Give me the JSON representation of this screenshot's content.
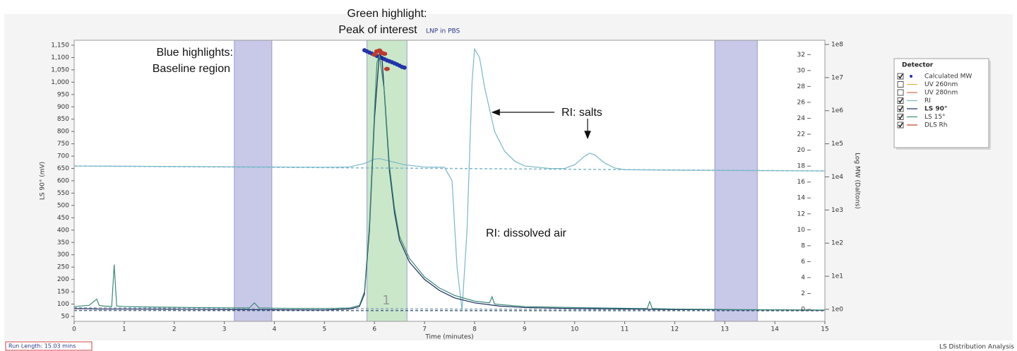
{
  "chart_data": {
    "type": "line",
    "subtitle": "LNP in PBS",
    "x_label": "Time (minutes)",
    "y_label": "LS 90° (mV)",
    "y3_label": "Log MW (Daltons)",
    "xlim": [
      0,
      15
    ],
    "xticks": [
      0,
      1,
      2,
      3,
      4,
      5,
      6,
      7,
      8,
      9,
      10,
      11,
      12,
      13,
      14,
      15
    ],
    "ylim": [
      30,
      1170
    ],
    "yticks": [
      50,
      100,
      150,
      200,
      250,
      300,
      350,
      400,
      450,
      500,
      550,
      600,
      650,
      700,
      750,
      800,
      850,
      900,
      950,
      {
        "value": 1000,
        "label": "1,000"
      },
      {
        "value": 1050,
        "label": "1,050"
      },
      {
        "value": 1100,
        "label": "1,100"
      },
      {
        "value": 1150,
        "label": "1,150"
      }
    ],
    "y2lim": [
      -1.5,
      33.8
    ],
    "y2ticks": [
      0,
      2,
      4,
      6,
      8,
      10,
      12,
      14,
      16,
      18,
      20,
      22,
      24,
      26,
      28,
      30,
      32
    ],
    "y3lim": [
      0.434,
      134000000
    ],
    "y3log": true,
    "y3ticks": [
      {
        "value": 1,
        "label": "1e0"
      },
      {
        "value": 10,
        "label": "1e1"
      },
      {
        "value": 100,
        "label": "1e2"
      },
      {
        "value": 1000,
        "label": "1e3"
      },
      {
        "value": 10000,
        "label": "1e4"
      },
      {
        "value": 100000,
        "label": "1e5"
      },
      {
        "value": 1000000,
        "label": "1e6"
      },
      {
        "value": 10000000,
        "label": "1e7"
      },
      {
        "value": 100000000,
        "label": "1e8"
      }
    ],
    "grid": false,
    "legend_title": "Detector",
    "highlights": [
      {
        "x": [
          3.2,
          3.95
        ],
        "color": "#9b9bd6"
      },
      {
        "x": [
          5.85,
          6.65
        ],
        "color": "#9fd39f"
      },
      {
        "x": [
          12.8,
          13.65
        ],
        "color": "#9b9bd6"
      }
    ],
    "baselines": [
      {
        "x": [
          0,
          15
        ],
        "values": [
          660,
          640
        ],
        "color": "#7fb8cc"
      },
      {
        "x": [
          0,
          15
        ],
        "values": [
          85,
          75
        ],
        "color": "#8fa4b8"
      },
      {
        "x": [
          0,
          15
        ],
        "values": [
          74,
          73
        ],
        "color": "#4f6a88"
      }
    ],
    "series": [
      {
        "name": "Calculated MW",
        "color": "#2233aa",
        "checked": true,
        "style": "markers",
        "axis": "y3",
        "x": [
          5.8,
          5.85,
          5.9,
          5.95,
          6.0,
          6.05,
          6.1,
          6.15,
          6.2,
          6.25,
          6.3,
          6.35,
          6.4,
          6.45,
          6.5,
          6.55,
          6.6
        ],
        "values": [
          67000000,
          62000000,
          57000000,
          53000000,
          49000000,
          45000000,
          42000000,
          39000000,
          36000000,
          33000000,
          31000000,
          29000000,
          27000000,
          25000000,
          23000000,
          21000000,
          20000000
        ]
      },
      {
        "name": "UV 260nm",
        "color": "#e8b04a",
        "checked": false,
        "style": "line",
        "x": [],
        "values": []
      },
      {
        "name": "UV 280nm",
        "color": "#e0704a",
        "checked": false,
        "style": "line",
        "x": [],
        "values": []
      },
      {
        "name": "RI",
        "color": "#78b7c9",
        "checked": true,
        "style": "line",
        "x": [
          0,
          1,
          2,
          3,
          4,
          5,
          5.5,
          5.8,
          6.0,
          6.1,
          6.3,
          6.6,
          7.0,
          7.4,
          7.55,
          7.65,
          7.75,
          7.85,
          7.95,
          8.0,
          8.1,
          8.2,
          8.4,
          8.6,
          8.8,
          9,
          9.5,
          9.8,
          10.0,
          10.2,
          10.3,
          10.4,
          10.6,
          10.8,
          11,
          12,
          13,
          14,
          15
        ],
        "values": [
          660,
          659,
          658,
          657,
          656,
          655,
          656,
          670,
          688,
          690,
          680,
          665,
          656,
          655,
          600,
          250,
          75,
          400,
          1000,
          1135,
          1100,
          980,
          800,
          720,
          680,
          660,
          650,
          650,
          665,
          700,
          712,
          705,
          672,
          652,
          645,
          643,
          642,
          641,
          640
        ]
      },
      {
        "name": "LS 90°",
        "color": "#1b2a5c",
        "checked": true,
        "bold": true,
        "style": "line",
        "x": [
          0,
          0.5,
          1,
          2,
          3,
          4,
          5,
          5.5,
          5.7,
          5.8,
          5.9,
          6.0,
          6.1,
          6.15,
          6.2,
          6.3,
          6.4,
          6.5,
          6.7,
          7.0,
          7.3,
          7.6,
          8,
          8.5,
          9,
          10,
          11,
          12,
          13,
          14,
          15
        ],
        "values": [
          82,
          80,
          80,
          79,
          78,
          77,
          76,
          80,
          90,
          140,
          400,
          850,
          1120,
          1100,
          950,
          640,
          470,
          360,
          270,
          200,
          155,
          125,
          105,
          92,
          86,
          82,
          80,
          78,
          77,
          76,
          75
        ]
      },
      {
        "name": "LS 15°",
        "color": "#3a8a7a",
        "checked": true,
        "style": "line",
        "x": [
          0,
          0.3,
          0.45,
          0.5,
          0.6,
          0.75,
          0.8,
          0.85,
          1,
          1.5,
          2,
          3,
          3.5,
          3.6,
          3.7,
          4,
          5,
          5.5,
          5.7,
          5.8,
          5.9,
          6.0,
          6.05,
          6.1,
          6.2,
          6.3,
          6.4,
          6.5,
          6.7,
          7.0,
          7.3,
          7.6,
          8,
          8.3,
          8.35,
          8.4,
          9,
          10,
          11,
          11.45,
          11.5,
          11.55,
          12,
          13,
          14,
          15
        ],
        "values": [
          90,
          95,
          120,
          95,
          92,
          90,
          260,
          92,
          90,
          88,
          87,
          85,
          84,
          105,
          84,
          83,
          82,
          84,
          95,
          150,
          420,
          880,
          1080,
          1110,
          960,
          660,
          490,
          375,
          285,
          210,
          165,
          135,
          112,
          105,
          130,
          100,
          90,
          86,
          83,
          82,
          110,
          82,
          80,
          78,
          77,
          76
        ]
      },
      {
        "name": "DLS Rh",
        "color": "#c0392b",
        "checked": true,
        "style": "markers",
        "axis": "y2",
        "x": [
          6.0,
          6.05,
          6.1,
          6.15,
          6.2,
          6.25
        ],
        "values": [
          32.0,
          32.4,
          32.5,
          32.2,
          32.1,
          30.2
        ]
      }
    ],
    "annotations": [
      "Green highlight:",
      "Peak of interest",
      "Blue highlights:",
      "Baseline region",
      "RI: salts",
      "RI: dissolved air",
      "1"
    ],
    "run_length": "Run Length: 15.03 mins",
    "footer": "LS Distribution Analysis"
  }
}
